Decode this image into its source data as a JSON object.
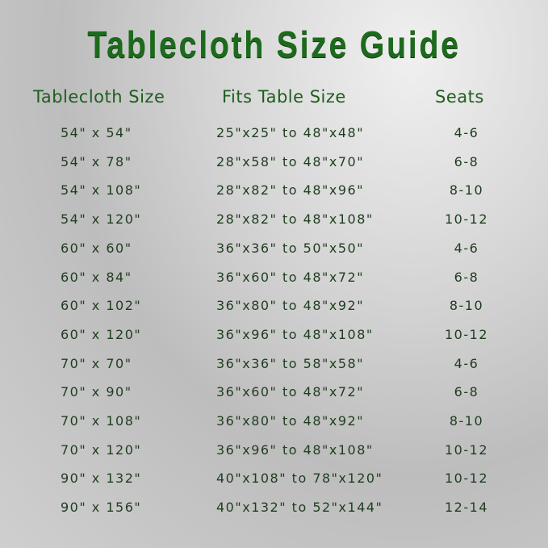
{
  "title": "Tablecloth Size Guide",
  "headers": {
    "size": "Tablecloth Size",
    "fits": "Fits Table Size",
    "seats": "Seats"
  },
  "colors": {
    "title": "#1d6a1d",
    "text": "#1f3d1f",
    "background": "#cfcfcf"
  },
  "rows": [
    {
      "size": "54\" x 54\"",
      "fits": "25\"x25\" to 48\"x48\"",
      "seats": "4-6"
    },
    {
      "size": "54\" x 78\"",
      "fits": "28\"x58\" to 48\"x70\"",
      "seats": "6-8"
    },
    {
      "size": "54\" x 108\"",
      "fits": "28\"x82\" to 48\"x96\"",
      "seats": "8-10"
    },
    {
      "size": "54\" x 120\"",
      "fits": "28\"x82\" to 48\"x108\"",
      "seats": "10-12"
    },
    {
      "size": "60\" x 60\"",
      "fits": "36\"x36\" to 50\"x50\"",
      "seats": "4-6"
    },
    {
      "size": "60\" x 84\"",
      "fits": "36\"x60\" to 48\"x72\"",
      "seats": "6-8"
    },
    {
      "size": "60\" x 102\"",
      "fits": "36\"x80\" to 48\"x92\"",
      "seats": "8-10"
    },
    {
      "size": "60\" x 120\"",
      "fits": "36\"x96\" to 48\"x108\"",
      "seats": "10-12"
    },
    {
      "size": "70\" x 70\"",
      "fits": "36\"x36\" to 58\"x58\"",
      "seats": "4-6"
    },
    {
      "size": "70\" x 90\"",
      "fits": "36\"x60\" to 48\"x72\"",
      "seats": "6-8"
    },
    {
      "size": "70\" x 108\"",
      "fits": "36\"x80\" to 48\"x92\"",
      "seats": "8-10"
    },
    {
      "size": "70\" x 120\"",
      "fits": "36\"x96\" to 48\"x108\"",
      "seats": "10-12"
    },
    {
      "size": "90\" x 132\"",
      "fits": "40\"x108\" to 78\"x120\"",
      "seats": "10-12"
    },
    {
      "size": "90\" x 156\"",
      "fits": "40\"x132\" to 52\"x144\"",
      "seats": "12-14"
    }
  ]
}
